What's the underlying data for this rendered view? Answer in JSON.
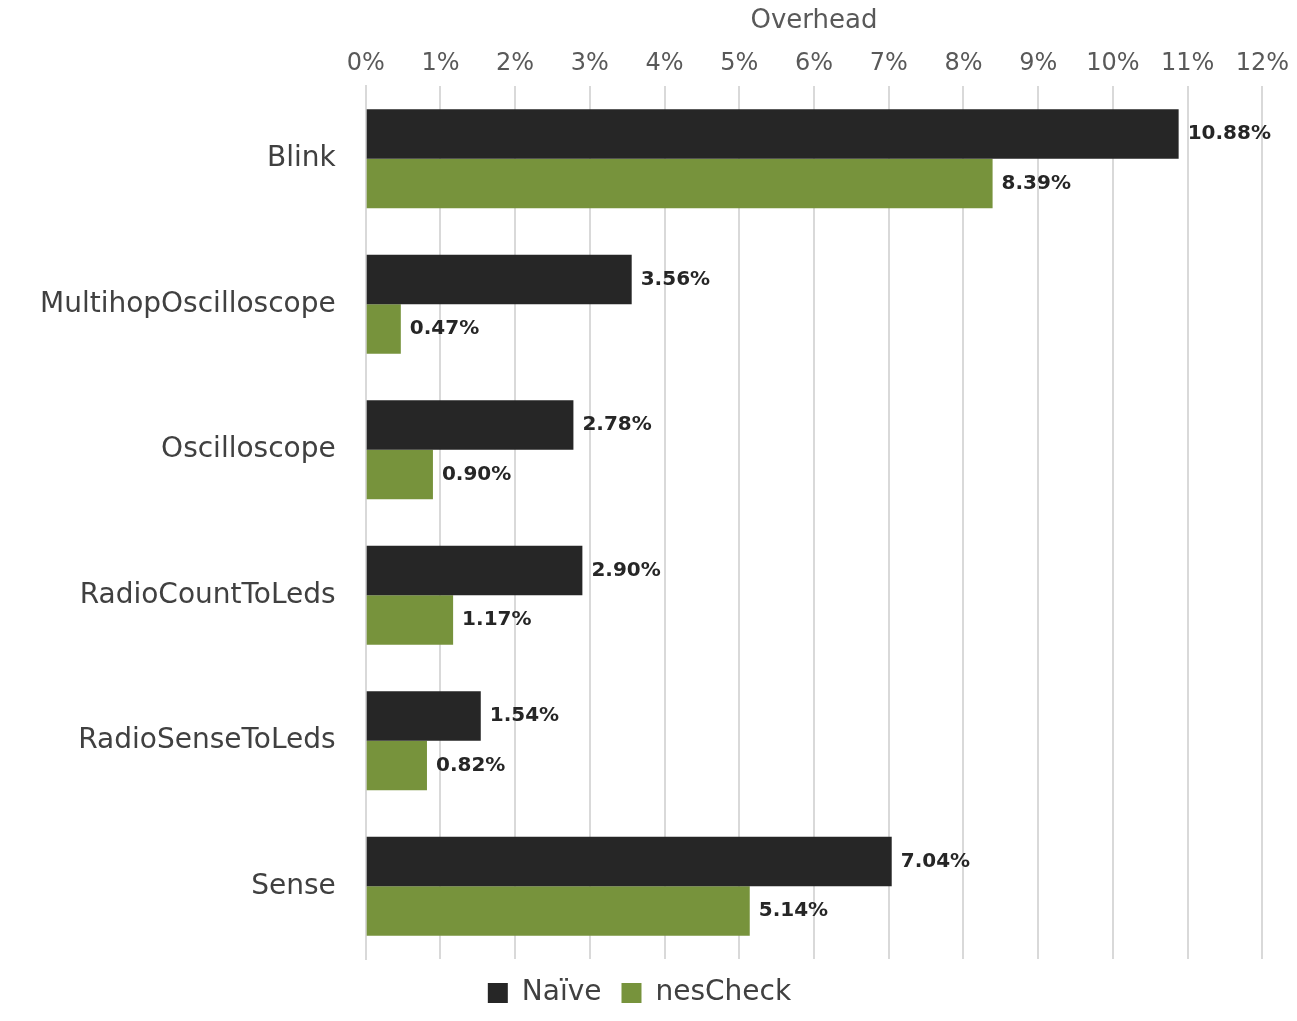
{
  "chart_data": {
    "type": "bar",
    "orientation": "horizontal",
    "xlabel": "Overhead",
    "categories": [
      "Blink",
      "MultihopOscilloscope",
      "Oscilloscope",
      "RadioCountToLeds",
      "RadioSenseToLeds",
      "Sense"
    ],
    "series": [
      {
        "name": "Naïve",
        "color": "#262626",
        "values": [
          10.88,
          3.56,
          2.78,
          2.9,
          1.54,
          7.04
        ],
        "value_labels": [
          "10.88%",
          "3.56%",
          "2.78%",
          "2.90%",
          "1.54%",
          "7.04%"
        ]
      },
      {
        "name": "nesCheck",
        "color": "#77933c",
        "values": [
          8.39,
          0.47,
          0.9,
          1.17,
          0.82,
          5.14
        ],
        "value_labels": [
          "8.39%",
          "0.47%",
          "0.90%",
          "1.17%",
          "0.82%",
          "5.14%"
        ]
      }
    ],
    "xlim": [
      0,
      12
    ],
    "xticks": [
      {
        "value": 0,
        "label": "0%"
      },
      {
        "value": 1,
        "label": "1%"
      },
      {
        "value": 2,
        "label": "2%"
      },
      {
        "value": 3,
        "label": "3%"
      },
      {
        "value": 4,
        "label": "4%"
      },
      {
        "value": 5,
        "label": "5%"
      },
      {
        "value": 6,
        "label": "6%"
      },
      {
        "value": 7,
        "label": "7%"
      },
      {
        "value": 8,
        "label": "8%"
      },
      {
        "value": 9,
        "label": "9%"
      },
      {
        "value": 10,
        "label": "10%"
      },
      {
        "value": 11,
        "label": "11%"
      },
      {
        "value": 12,
        "label": "12%"
      }
    ],
    "grid": "x",
    "legend": "bottom"
  }
}
